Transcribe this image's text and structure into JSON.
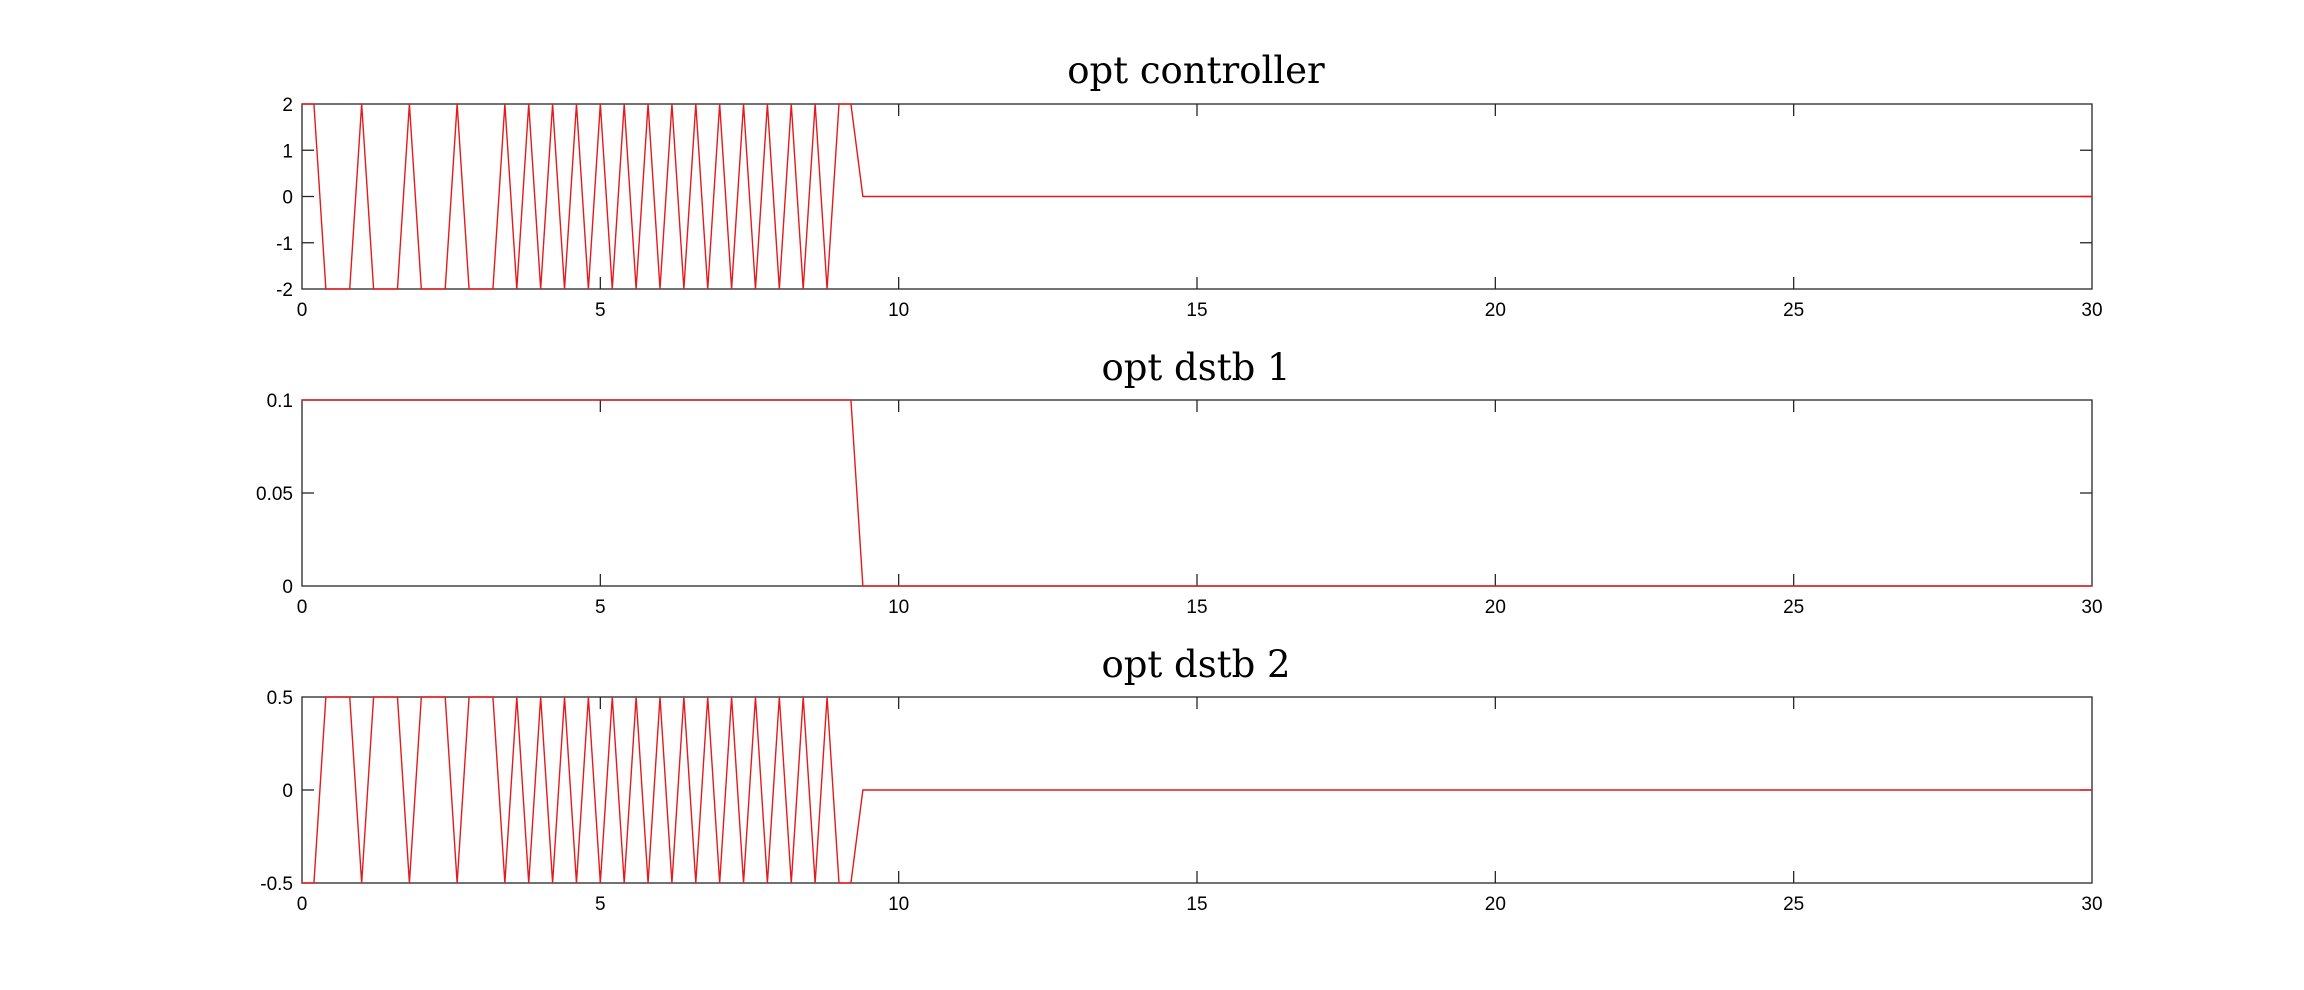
{
  "figure": {
    "background": "#ffffff",
    "line_color": "#e41a1c",
    "axis_color": "#262626"
  },
  "chart_data": [
    {
      "type": "line",
      "title": "opt controller",
      "xlabel": "",
      "ylabel": "",
      "xlim": [
        0,
        30
      ],
      "ylim": [
        -2,
        2
      ],
      "xticks": [
        0,
        5,
        10,
        15,
        20,
        25,
        30
      ],
      "yticks": [
        -2,
        -1,
        0,
        1,
        2
      ],
      "xtick_labels": [
        "0",
        "5",
        "10",
        "15",
        "20",
        "25",
        "30"
      ],
      "ytick_labels": [
        "-2",
        "-1",
        "0",
        "1",
        "2"
      ],
      "grid": false,
      "series": [
        {
          "color": "#e41a1c",
          "x": [
            0,
            0.2,
            0.4,
            0.8,
            1.0,
            1.2,
            1.6,
            1.8,
            2.0,
            2.4,
            2.6,
            2.8,
            3.2,
            3.4,
            3.6,
            3.8,
            4.0,
            4.2,
            4.4,
            4.6,
            4.8,
            5.0,
            5.2,
            5.4,
            5.6,
            5.8,
            6.0,
            6.2,
            6.4,
            6.6,
            6.8,
            7.0,
            7.2,
            7.4,
            7.6,
            7.8,
            8.0,
            8.2,
            8.4,
            8.6,
            8.8,
            9.0,
            9.2,
            9.4,
            30
          ],
          "y": [
            2,
            2,
            -2,
            -2,
            2,
            -2,
            -2,
            2,
            -2,
            -2,
            2,
            -2,
            -2,
            2,
            -2,
            2,
            -2,
            2,
            -2,
            2,
            -2,
            2,
            -2,
            2,
            -2,
            2,
            -2,
            2,
            -2,
            2,
            -2,
            2,
            -2,
            2,
            -2,
            2,
            -2,
            2,
            -2,
            2,
            -2,
            2,
            2,
            0,
            0
          ]
        }
      ]
    },
    {
      "type": "line",
      "title": "opt dstb 1",
      "xlabel": "",
      "ylabel": "",
      "xlim": [
        0,
        30
      ],
      "ylim": [
        0,
        0.1
      ],
      "xticks": [
        0,
        5,
        10,
        15,
        20,
        25,
        30
      ],
      "yticks": [
        0,
        0.05,
        0.1
      ],
      "xtick_labels": [
        "0",
        "5",
        "10",
        "15",
        "20",
        "25",
        "30"
      ],
      "ytick_labels": [
        "0",
        "0.05",
        "0.1"
      ],
      "grid": false,
      "series": [
        {
          "color": "#e41a1c",
          "x": [
            0,
            9.2,
            9.4,
            30
          ],
          "y": [
            0.1,
            0.1,
            0,
            0
          ]
        }
      ]
    },
    {
      "type": "line",
      "title": "opt dstb 2",
      "xlabel": "",
      "ylabel": "",
      "xlim": [
        0,
        30
      ],
      "ylim": [
        -0.5,
        0.5
      ],
      "xticks": [
        0,
        5,
        10,
        15,
        20,
        25,
        30
      ],
      "yticks": [
        -0.5,
        0,
        0.5
      ],
      "xtick_labels": [
        "0",
        "5",
        "10",
        "15",
        "20",
        "25",
        "30"
      ],
      "ytick_labels": [
        "-0.5",
        "0",
        "0.5"
      ],
      "grid": false,
      "series": [
        {
          "color": "#e41a1c",
          "x": [
            0,
            0.2,
            0.4,
            0.8,
            1.0,
            1.2,
            1.6,
            1.8,
            2.0,
            2.4,
            2.6,
            2.8,
            3.2,
            3.4,
            3.6,
            3.8,
            4.0,
            4.2,
            4.4,
            4.6,
            4.8,
            5.0,
            5.2,
            5.4,
            5.6,
            5.8,
            6.0,
            6.2,
            6.4,
            6.6,
            6.8,
            7.0,
            7.2,
            7.4,
            7.6,
            7.8,
            8.0,
            8.2,
            8.4,
            8.6,
            8.8,
            9.0,
            9.2,
            9.4,
            30
          ],
          "y": [
            -0.5,
            -0.5,
            0.5,
            0.5,
            -0.5,
            0.5,
            0.5,
            -0.5,
            0.5,
            0.5,
            -0.5,
            0.5,
            0.5,
            -0.5,
            0.5,
            -0.5,
            0.5,
            -0.5,
            0.5,
            -0.5,
            0.5,
            -0.5,
            0.5,
            -0.5,
            0.5,
            -0.5,
            0.5,
            -0.5,
            0.5,
            -0.5,
            0.5,
            -0.5,
            0.5,
            -0.5,
            0.5,
            -0.5,
            0.5,
            -0.5,
            0.5,
            -0.5,
            0.5,
            -0.5,
            -0.5,
            0,
            0
          ]
        }
      ]
    }
  ]
}
